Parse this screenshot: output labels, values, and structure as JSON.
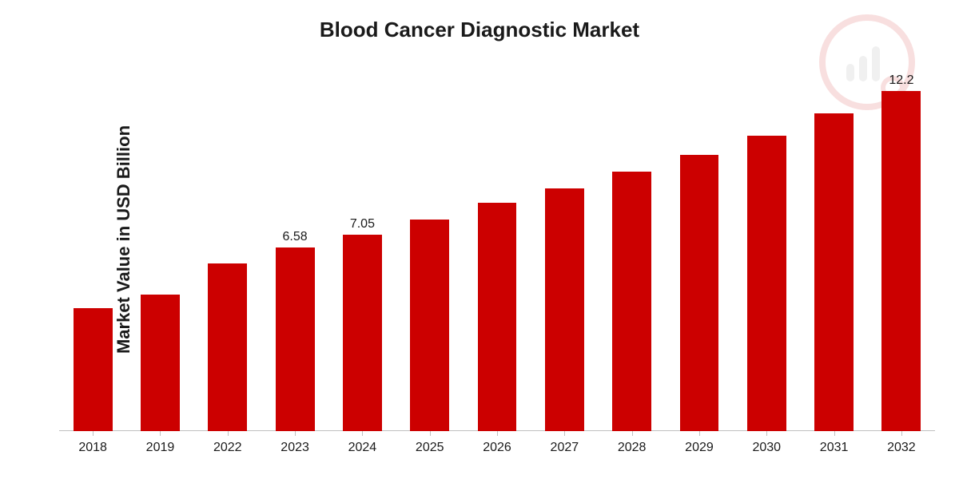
{
  "chart": {
    "type": "bar",
    "title": "Blood Cancer Diagnostic Market",
    "title_fontsize": 26,
    "ylabel": "Market Value in USD Billion",
    "ylabel_fontsize": 22,
    "background_color": "#ffffff",
    "bar_color": "#cc0000",
    "axis_color": "#c0c0c0",
    "text_color": "#1a1a1a",
    "y_max": 12.6,
    "bar_width_pct": 58,
    "categories": [
      "2018",
      "2019",
      "2022",
      "2023",
      "2024",
      "2025",
      "2026",
      "2027",
      "2028",
      "2029",
      "2030",
      "2031",
      "2032"
    ],
    "values": [
      4.4,
      4.9,
      6.0,
      6.58,
      7.05,
      7.6,
      8.2,
      8.7,
      9.3,
      9.9,
      10.6,
      11.4,
      12.2
    ],
    "value_labels": [
      "",
      "",
      "",
      "6.58",
      "7.05",
      "",
      "",
      "",
      "",
      "",
      "",
      "",
      "12.2"
    ],
    "watermark_color": "#c0c0c0",
    "watermark_accent": "#cc0000"
  }
}
